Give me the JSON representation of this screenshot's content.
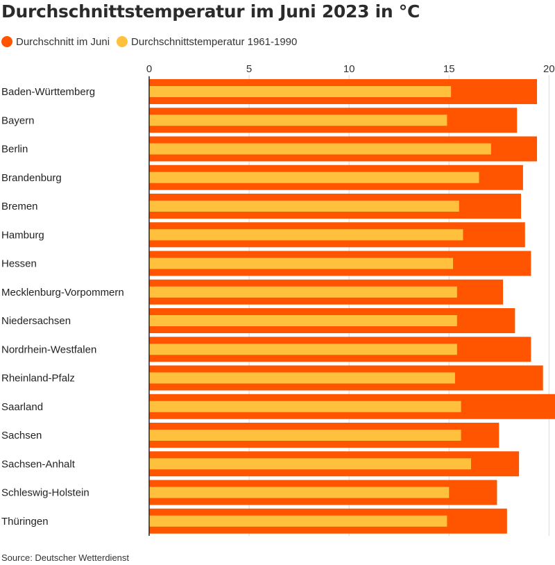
{
  "chart_data": {
    "type": "bar",
    "orientation": "horizontal",
    "title": "Durchschnittstemperatur im Juni 2023 in °C",
    "source": "Source: Deutscher Wetterdienst",
    "xlim": [
      0,
      20.3
    ],
    "ticks": [
      0,
      5,
      10,
      15,
      20
    ],
    "grid": true,
    "legend_position": "top-left",
    "categories": [
      "Baden-Württemberg",
      "Bayern",
      "Berlin",
      "Brandenburg",
      "Bremen",
      "Hamburg",
      "Hessen",
      "Mecklenburg-Vorpommern",
      "Niedersachsen",
      "Nordrhein-Westfalen",
      "Rheinland-Pfalz",
      "Saarland",
      "Sachsen",
      "Sachsen-Anhalt",
      "Schleswig-Holstein",
      "Thüringen"
    ],
    "series": [
      {
        "name": "Durchschnitt im Juni",
        "color": "#ff5500",
        "values": [
          19.4,
          18.4,
          19.4,
          18.7,
          18.6,
          18.8,
          19.1,
          17.7,
          18.3,
          19.1,
          19.7,
          20.4,
          17.5,
          18.5,
          17.4,
          17.9
        ]
      },
      {
        "name": "Durchschnittstemperatur 1961-1990",
        "color": "#ffc03d",
        "values": [
          15.1,
          14.9,
          17.1,
          16.5,
          15.5,
          15.7,
          15.2,
          15.4,
          15.4,
          15.4,
          15.3,
          15.6,
          15.6,
          16.1,
          15.0,
          14.9
        ]
      }
    ]
  }
}
